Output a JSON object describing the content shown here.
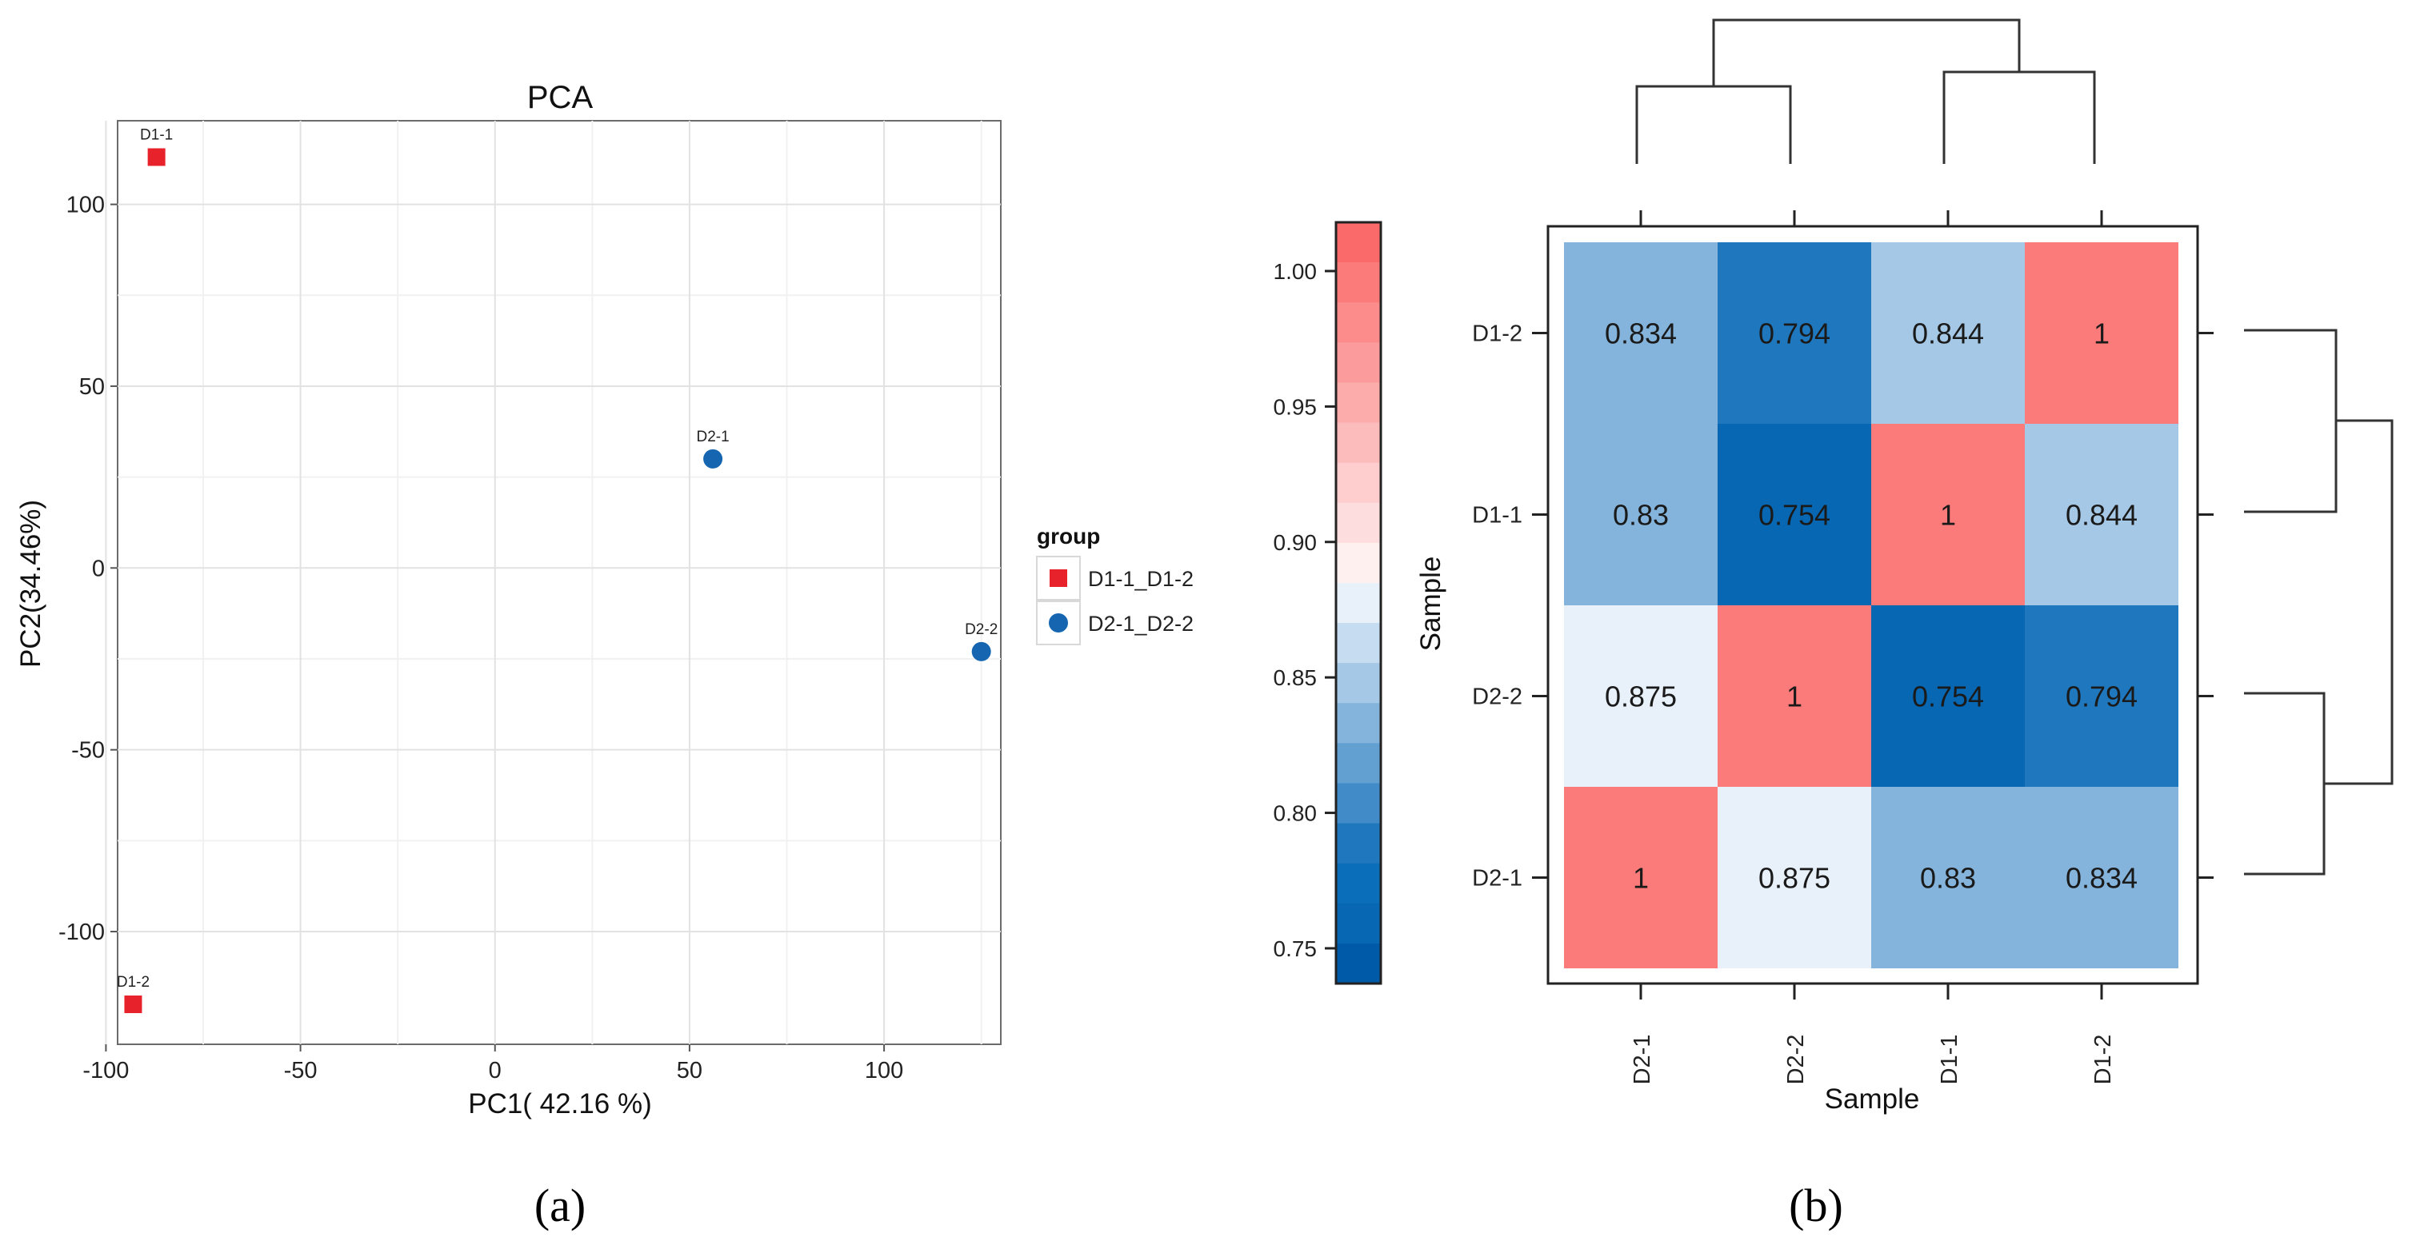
{
  "panels": {
    "a_label": "(a)",
    "b_label": "(b)"
  },
  "chart_data": [
    {
      "type": "scatter",
      "title": "PCA",
      "xlabel": "PC1( 42.16 %)",
      "ylabel": "PC2(34.46%)",
      "xlim": [
        -97,
        130
      ],
      "ylim": [
        -131,
        123
      ],
      "xticks": [
        -100,
        -50,
        0,
        50,
        100
      ],
      "yticks": [
        -100,
        -50,
        0,
        50,
        100
      ],
      "grid": true,
      "legend": {
        "title": "group",
        "placement": "right",
        "entries": [
          {
            "label": "D1-1_D1-2",
            "color": "#e8222a",
            "marker": "square"
          },
          {
            "label": "D2-1_D2-2",
            "color": "#1565b0",
            "marker": "circle"
          }
        ]
      },
      "series": [
        {
          "name": "D1-1_D1-2",
          "color": "#e8222a",
          "marker": "square",
          "points": [
            {
              "label": "D1-1",
              "x": -87,
              "y": 113
            },
            {
              "label": "D1-2",
              "x": -93,
              "y": -120
            }
          ]
        },
        {
          "name": "D2-1_D2-2",
          "color": "#1565b0",
          "marker": "circle",
          "points": [
            {
              "label": "D2-1",
              "x": 56,
              "y": 30
            },
            {
              "label": "D2-2",
              "x": 125,
              "y": -23
            }
          ]
        }
      ]
    },
    {
      "type": "heatmap",
      "xlabel": "Sample",
      "ylabel": "Sample",
      "columns": [
        "D2-1",
        "D2-2",
        "D1-1",
        "D1-2"
      ],
      "rows": [
        "D1-2",
        "D1-1",
        "D2-2",
        "D2-1"
      ],
      "values": [
        [
          0.834,
          0.794,
          0.844,
          1
        ],
        [
          0.83,
          0.754,
          1,
          0.844
        ],
        [
          0.875,
          1,
          0.754,
          0.794
        ],
        [
          1,
          0.875,
          0.83,
          0.834
        ]
      ],
      "cell_labels": [
        [
          "0.834",
          "0.794",
          "0.844",
          "1"
        ],
        [
          "0.83",
          "0.754",
          "1",
          "0.844"
        ],
        [
          "0.875",
          "1",
          "0.754",
          "0.794"
        ],
        [
          "1",
          "0.875",
          "0.83",
          "0.834"
        ]
      ],
      "colorbar": {
        "range": [
          0.737,
          1.018
        ],
        "ticks": [
          1.0,
          0.95,
          0.9,
          0.85,
          0.8,
          0.75
        ],
        "tick_labels": [
          "1.00",
          "0.95",
          "0.90",
          "0.85",
          "0.80",
          "0.75"
        ],
        "colors_top_to_bottom": [
          "#fb6a6a",
          "#fb7b7b",
          "#fc8b8b",
          "#fc9b9b",
          "#fdacac",
          "#fdbcbc",
          "#fecdcd",
          "#feddde",
          "#fff0f0",
          "#e8f1fa",
          "#c6dcf0",
          "#a5c8e6",
          "#84b4dc",
          "#62a0d2",
          "#418cc8",
          "#1f78be",
          "#0a6eba",
          "#0867b3",
          "#005aa8"
        ]
      },
      "dendrogram_columns": "(D2-1, D2-2), (D1-1, D1-2)",
      "dendrogram_rows": "(D1-2, D1-1), (D2-2, D2-1)"
    }
  ]
}
